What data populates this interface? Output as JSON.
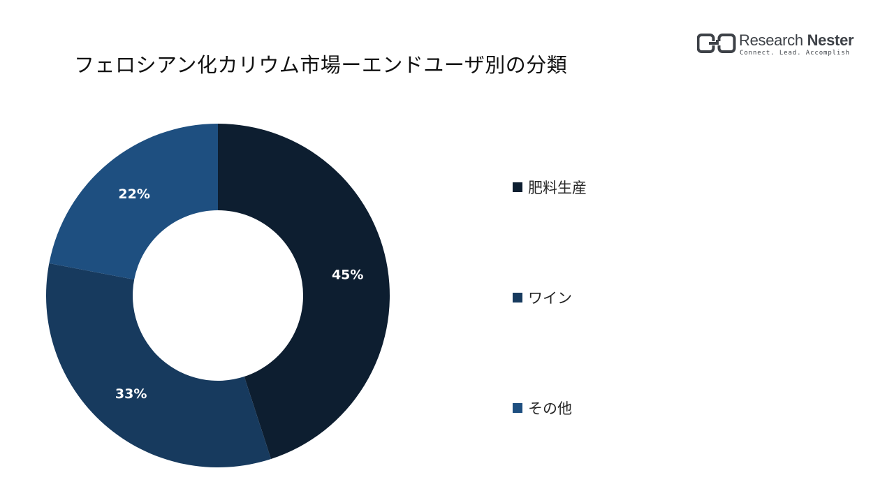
{
  "title": "フェロシアン化カリウム市場ーエンドユーザ別の分類",
  "logo": {
    "name_regular": "Research ",
    "name_bold": "Nester",
    "tagline": "Connect. Lead. Accomplish"
  },
  "colors": {
    "fertilizer": "#0d1e30",
    "wine": "#173a5e",
    "other": "#1e4f80",
    "label_text": "#ffffff"
  },
  "chart_data": {
    "type": "pie",
    "variant": "donut",
    "title": "フェロシアン化カリウム市場ーエンドユーザ別の分類",
    "categories": [
      "肥料生産",
      "ワイン",
      "その他"
    ],
    "values": [
      45,
      33,
      22
    ],
    "data_labels": [
      "45%",
      "33%",
      "22%"
    ],
    "colors": [
      "#0d1e30",
      "#173a5e",
      "#1e4f80"
    ],
    "start_angle_deg": 0,
    "direction": "clockwise",
    "legend_position": "right"
  },
  "legend": [
    {
      "label": "肥料生産",
      "color": "#0d1e30"
    },
    {
      "label": "ワイン",
      "color": "#173a5e"
    },
    {
      "label": "その他",
      "color": "#1e4f80"
    }
  ]
}
